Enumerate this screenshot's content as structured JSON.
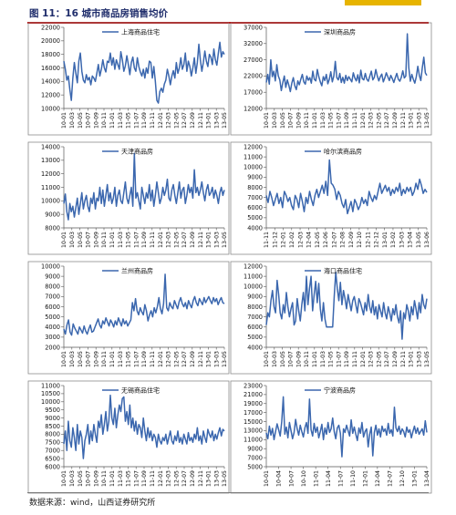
{
  "figure": {
    "title": "图 11：16 城市商品房销售均价",
    "source": "数据来源：wind，山西证券研究所"
  },
  "colors": {
    "series": "#3b67ae",
    "rule": "#c00000",
    "title": "#1f2d6b",
    "stripe": "#e7b400"
  },
  "chart_data": [
    {
      "type": "line",
      "legend": "上海商品住宅",
      "legend_position": "top-center",
      "ylim": [
        10000,
        22000
      ],
      "yticks": [
        10000,
        12000,
        14000,
        16000,
        18000,
        20000,
        22000
      ],
      "xticks": [
        "10-01",
        "10-03",
        "10-05",
        "10-07",
        "10-09",
        "10-11",
        "11-01",
        "11-03",
        "11-05",
        "11-07",
        "11-09",
        "11-11",
        "12-01",
        "12-03",
        "12-05",
        "12-07",
        "12-09",
        "12-11",
        "13-01",
        "13-03",
        "13-05"
      ],
      "values": [
        17000,
        15800,
        14200,
        14800,
        12800,
        11200,
        14500,
        16800,
        15200,
        13800,
        17000,
        18200,
        15500,
        14200,
        13800,
        15000,
        14200,
        14600,
        13500,
        14800,
        14500,
        14000,
        15200,
        16500,
        14800,
        15800,
        17200,
        16000,
        15400,
        17000,
        16800,
        18200,
        16400,
        17500,
        15800,
        17200,
        16500,
        15800,
        18400,
        17200,
        15500,
        16300,
        17800,
        16500,
        15000,
        16800,
        17600,
        16000,
        15500,
        17500,
        16200,
        15400,
        14800,
        15800,
        14500,
        16000,
        15200,
        17000,
        16800,
        14500,
        16200,
        14000,
        11200,
        10800,
        12500,
        13000,
        12400,
        13600,
        14200,
        15800,
        14800,
        13500,
        14800,
        15600,
        14500,
        16800,
        15200,
        16000,
        17500,
        15800,
        16500,
        18200,
        15500,
        17000,
        16200,
        14800,
        16000,
        17500,
        15200,
        16800,
        19500,
        17200,
        15500,
        16800,
        18500,
        17000,
        16200,
        18000,
        17600,
        16500,
        18800,
        17200,
        16400,
        18200,
        19800,
        17600,
        18400,
        18000
      ]
    },
    {
      "type": "line",
      "legend": "深圳商品房",
      "legend_position": "top-center",
      "ylim": [
        12000,
        37000
      ],
      "yticks": [
        12000,
        17000,
        22000,
        27000,
        32000,
        37000
      ],
      "xticks": [
        "10-01",
        "10-03",
        "10-05",
        "10-07",
        "10-09",
        "10-11",
        "11-01",
        "11-03",
        "11-05",
        "11-07",
        "11-09",
        "11-11",
        "12-01",
        "12-03",
        "12-05",
        "12-07",
        "12-09",
        "12-11",
        "13-01",
        "13-03",
        "13-05"
      ],
      "values": [
        20000,
        22500,
        19500,
        27000,
        21800,
        23500,
        20500,
        25500,
        22000,
        20800,
        17500,
        20000,
        22000,
        18500,
        20800,
        19200,
        17200,
        19800,
        21500,
        19000,
        17800,
        20500,
        19300,
        21000,
        22500,
        20200,
        19500,
        22000,
        20700,
        21500,
        19800,
        23500,
        21000,
        20500,
        24000,
        21800,
        20200,
        19000,
        21800,
        20600,
        22500,
        19600,
        21000,
        23300,
        20200,
        22000,
        26500,
        21500,
        20800,
        22800,
        20000,
        21600,
        19800,
        22200,
        20600,
        21800,
        21000,
        20200,
        23000,
        21400,
        20500,
        22400,
        19900,
        23800,
        21200,
        20800,
        22800,
        21000,
        20400,
        22000,
        23500,
        20800,
        21600,
        24000,
        22000,
        20500,
        21800,
        22600,
        20200,
        21400,
        23000,
        21800,
        20600,
        22200,
        21200,
        20000,
        21500,
        22800,
        21000,
        20400,
        21600,
        23600,
        21400,
        22000,
        35000,
        24500,
        20400,
        22500,
        21000,
        19800,
        21800,
        25000,
        22200,
        20600,
        24600,
        27800,
        23000,
        22200
      ]
    },
    {
      "type": "line",
      "legend": "天津商品房",
      "legend_position": "top-center",
      "ylim": [
        8000,
        14000
      ],
      "yticks": [
        8000,
        9000,
        10000,
        11000,
        12000,
        13000,
        14000
      ],
      "xticks": [
        "10-01",
        "10-03",
        "10-05",
        "10-07",
        "10-09",
        "10-11",
        "11-01",
        "11-03",
        "11-05",
        "11-07",
        "11-09",
        "11-11",
        "12-01",
        "12-03",
        "12-05",
        "12-07",
        "12-09",
        "12-11",
        "13-01",
        "13-03",
        "13-05"
      ],
      "values": [
        9800,
        10500,
        9200,
        8600,
        9800,
        9200,
        9600,
        8800,
        9500,
        10200,
        9000,
        9800,
        10600,
        9400,
        10000,
        10400,
        9600,
        9200,
        10200,
        9800,
        10600,
        9400,
        10200,
        10000,
        11000,
        9800,
        10800,
        9600,
        10400,
        11200,
        10000,
        10600,
        9800,
        10200,
        11000,
        9600,
        10400,
        10800,
        10000,
        9800,
        10600,
        11400,
        10200,
        9800,
        10400,
        11000,
        9600,
        13500,
        10200,
        10600,
        10000,
        9400,
        11000,
        10400,
        9800,
        10600,
        10200,
        11200,
        10000,
        10800,
        9600,
        10400,
        11400,
        10600,
        9800,
        10200,
        11000,
        10400,
        10800,
        11600,
        10200,
        10000,
        10800,
        11200,
        10400,
        9800,
        10600,
        11400,
        10200,
        10800,
        11000,
        9800,
        10400,
        11200,
        10600,
        11000,
        10200,
        12300,
        10600,
        11000,
        10400,
        10800,
        11400,
        10600,
        10000,
        10800,
        11200,
        10400,
        10600,
        11000,
        10200,
        10800,
        10400,
        9800,
        10600,
        11000,
        10400,
        10800
      ]
    },
    {
      "type": "line",
      "legend": "哈尔滨商品房",
      "legend_position": "top-center",
      "ylim": [
        4000,
        12000
      ],
      "yticks": [
        4000,
        5000,
        6000,
        7000,
        8000,
        9000,
        10000,
        11000,
        12000
      ],
      "xticks": [
        "11-11",
        "11-12",
        "12-01",
        "12-02",
        "12-03",
        "12-04",
        "12-05",
        "12-06",
        "12-07",
        "12-08",
        "12-09",
        "12-10",
        "12-11",
        "12-12",
        "13-01",
        "13-02",
        "13-03",
        "13-04",
        "13-05",
        "13-06"
      ],
      "values": [
        7200,
        6500,
        7600,
        7000,
        6200,
        6800,
        7400,
        6400,
        7000,
        6000,
        7600,
        7200,
        6600,
        7000,
        6200,
        5800,
        7200,
        6800,
        6000,
        7400,
        6600,
        5600,
        7000,
        6400,
        7600,
        6800,
        6200,
        7200,
        7800,
        7000,
        7600,
        8200,
        7400,
        8600,
        7200,
        10700,
        8400,
        8200,
        7800,
        6800,
        7600,
        7200,
        6400,
        6000,
        6800,
        5400,
        6000,
        6600,
        5600,
        6800,
        6400,
        5800,
        6200,
        7000,
        6400,
        6800,
        6200,
        7600,
        7000,
        6600,
        7200,
        6800,
        7600,
        8400,
        7400,
        7800,
        8200,
        7600,
        8000,
        7200,
        7800,
        7400,
        8000,
        7600,
        8400,
        7200,
        7800,
        7400,
        8000,
        7600,
        8000,
        7200,
        7600,
        8400,
        7800,
        8800,
        8200,
        7400,
        7800,
        7500
      ]
    },
    {
      "type": "line",
      "legend": "兰州商品房",
      "legend_position": "top-center",
      "ylim": [
        2000,
        10000
      ],
      "yticks": [
        2000,
        3000,
        4000,
        5000,
        6000,
        7000,
        8000,
        9000,
        10000
      ],
      "xticks": [
        "10-01",
        "10-03",
        "10-05",
        "10-07",
        "10-09",
        "10-11",
        "11-01",
        "11-03",
        "11-05",
        "11-07",
        "11-09",
        "11-11",
        "12-01",
        "12-03",
        "12-05",
        "12-07",
        "12-09",
        "12-11",
        "13-01",
        "13-03",
        "13-05"
      ],
      "values": [
        3800,
        3300,
        4200,
        4700,
        3500,
        3200,
        4300,
        3900,
        3600,
        3300,
        4000,
        3700,
        3400,
        4100,
        3600,
        3300,
        3800,
        4200,
        3500,
        3600,
        4000,
        4400,
        4800,
        4200,
        3900,
        4600,
        4300,
        4900,
        4500,
        4100,
        4700,
        4400,
        4000,
        4600,
        4200,
        4900,
        4500,
        4100,
        4800,
        4300,
        4600,
        4100,
        4400,
        4700,
        6400,
        5600,
        6800,
        5600,
        5200,
        5900,
        5500,
        5200,
        6200,
        5600,
        4600,
        5200,
        5600,
        5000,
        5900,
        5400,
        6000,
        6900,
        5800,
        5300,
        6300,
        9200,
        5900,
        5600,
        6400,
        6000,
        5800,
        6600,
        6200,
        5800,
        6500,
        6900,
        6300,
        6000,
        6400,
        5800,
        6600,
        6200,
        5900,
        6600,
        7000,
        6400,
        6100,
        6800,
        6500,
        6200,
        6900,
        6400,
        6700,
        7000,
        6600,
        6300,
        6900,
        6500,
        6800,
        6200,
        6600,
        6900,
        6400,
        6300
      ]
    },
    {
      "type": "line",
      "legend": "海口商品住宅",
      "legend_position": "top-center",
      "ylim": [
        4000,
        12000
      ],
      "yticks": [
        4000,
        5000,
        6000,
        7000,
        8000,
        9000,
        10000,
        11000,
        12000
      ],
      "xticks": [
        "10-01",
        "10-03",
        "10-05",
        "10-07",
        "10-09",
        "10-11",
        "11-01",
        "11-03",
        "11-05",
        "11-07",
        "11-09",
        "11-11",
        "12-01",
        "12-03",
        "12-05",
        "12-07",
        "12-09",
        "12-11",
        "13-01",
        "13-03",
        "13-05"
      ],
      "values": [
        6200,
        7400,
        7000,
        8600,
        9600,
        8000,
        7400,
        10600,
        9200,
        7400,
        6800,
        8200,
        7400,
        9400,
        8000,
        7000,
        7800,
        8400,
        6200,
        6600,
        8800,
        7600,
        6600,
        8200,
        9400,
        7600,
        11000,
        8200,
        9800,
        11000,
        7600,
        9200,
        10500,
        8400,
        10300,
        7800,
        6600,
        8400,
        6800,
        6000,
        6000,
        6000,
        6000,
        6000,
        9000,
        11400,
        9800,
        8600,
        10400,
        8200,
        9600,
        8800,
        7800,
        9200,
        8400,
        7600,
        8600,
        9000,
        8200,
        7400,
        8800,
        8400,
        7800,
        7200,
        8400,
        7600,
        9200,
        8000,
        7400,
        8600,
        7200,
        8000,
        6800,
        8200,
        7600,
        7000,
        8400,
        7400,
        6800,
        8000,
        7400,
        6600,
        7800,
        7200,
        8200,
        7000,
        6400,
        7600,
        4800,
        7400,
        6800,
        8200,
        7600,
        6600,
        8000,
        7200,
        8600,
        7800,
        6800,
        8400,
        7400,
        9200,
        8200,
        7800,
        8800
      ]
    },
    {
      "type": "line",
      "legend": "无锡商品住宅",
      "legend_position": "top-center",
      "ylim": [
        6000,
        11000
      ],
      "yticks": [
        6000,
        6500,
        7000,
        7500,
        8000,
        8500,
        9000,
        9500,
        10000,
        10500,
        11000
      ],
      "xticks": [
        "10-01",
        "10-03",
        "10-05",
        "10-07",
        "10-09",
        "10-11",
        "11-01",
        "11-03",
        "11-05",
        "11-07",
        "11-09",
        "11-11",
        "12-01",
        "12-03",
        "12-05",
        "12-07",
        "12-09",
        "12-11",
        "13-01",
        "13-03",
        "13-05"
      ],
      "values": [
        7400,
        8200,
        7000,
        8800,
        7600,
        7200,
        8400,
        7800,
        7000,
        8600,
        7400,
        8200,
        7800,
        6500,
        7600,
        8000,
        8600,
        7400,
        8200,
        7600,
        8600,
        8000,
        7500,
        8800,
        8400,
        9200,
        8000,
        8600,
        9400,
        8200,
        8800,
        10400,
        9000,
        8600,
        9600,
        8400,
        9200,
        9800,
        9400,
        10200,
        10300,
        8800,
        9400,
        8600,
        9800,
        8400,
        9000,
        8200,
        8800,
        8000,
        8600,
        8400,
        7800,
        9000,
        8200,
        7600,
        8400,
        7800,
        8200,
        7600,
        8000,
        7800,
        7200,
        8000,
        7600,
        7400,
        7800,
        7600,
        8000,
        7400,
        7800,
        8200,
        7600,
        7400,
        7900,
        7600,
        8200,
        7500,
        7800,
        7400,
        8000,
        7700,
        7400,
        8100,
        7600,
        7800,
        7500,
        8000,
        7700,
        8400,
        7600,
        7900,
        7400,
        8200,
        7800,
        7500,
        8300,
        8000,
        7800,
        8200,
        7600,
        8000,
        7700,
        8100,
        8400,
        7900,
        8300,
        8200
      ]
    },
    {
      "type": "line",
      "legend": "宁波商品房",
      "legend_position": "top-center",
      "ylim": [
        5000,
        23000
      ],
      "yticks": [
        5000,
        7000,
        9000,
        11000,
        13000,
        15000,
        17000,
        19000,
        21000,
        23000
      ],
      "xticks": [
        "10-01",
        "10-04",
        "10-07",
        "10-10",
        "11-01",
        "11-04",
        "11-07",
        "11-10",
        "12-01",
        "12-04",
        "12-07",
        "12-10",
        "13-01",
        "13-04"
      ],
      "values": [
        12500,
        11200,
        14000,
        12000,
        13500,
        11000,
        12800,
        14500,
        13200,
        11800,
        15000,
        20500,
        12200,
        13800,
        11400,
        14800,
        13000,
        11200,
        12600,
        15500,
        13400,
        12000,
        14200,
        12800,
        11600,
        13600,
        14800,
        12400,
        20000,
        13200,
        11800,
        14600,
        12600,
        13800,
        11400,
        12800,
        14400,
        11000,
        13600,
        12200,
        14800,
        12600,
        13400,
        15800,
        12800,
        11200,
        13600,
        14200,
        12400,
        7200,
        13400,
        12600,
        14200,
        13000,
        11800,
        15400,
        12400,
        13800,
        12200,
        10800,
        13600,
        12400,
        14800,
        11600,
        12800,
        13400,
        9400,
        12200,
        13800,
        7400,
        12600,
        14200,
        12000,
        13400,
        11600,
        14000,
        12800,
        13400,
        12000,
        14600,
        12400,
        13200,
        11800,
        18200,
        13600,
        12800,
        14000,
        12200,
        13400,
        12800,
        11600,
        13800,
        12600,
        13200,
        11400,
        12800,
        14000,
        12400,
        13600,
        12200,
        12800,
        13400,
        12000,
        15200,
        12600
      ]
    }
  ]
}
